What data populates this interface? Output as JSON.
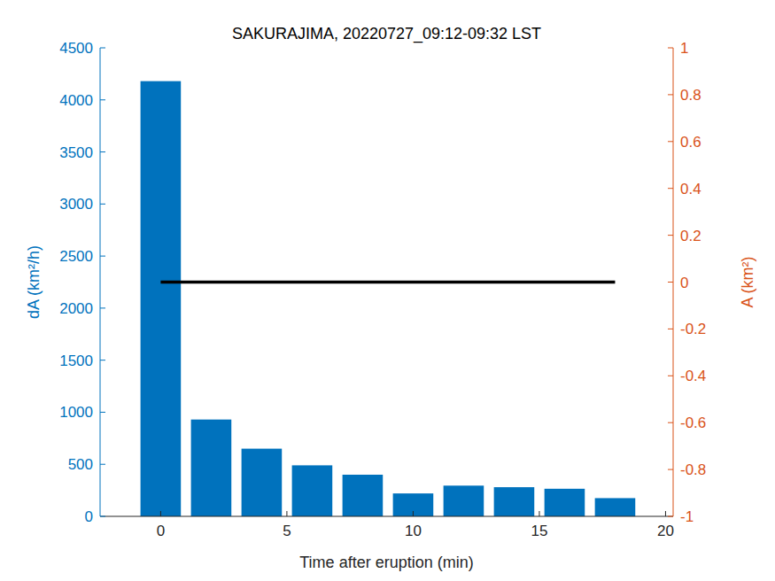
{
  "chart_data": {
    "type": "bar",
    "title": "SAKURAJIMA, 20220727_09:12-09:32 LST",
    "xlabel": "Time after eruption (min)",
    "ylabel": "dA (km²/h)",
    "y2label": "A (km²)",
    "x": [
      0,
      2,
      4,
      6,
      8,
      10,
      12,
      14,
      16,
      18
    ],
    "series": [
      {
        "type": "bar",
        "color": "#0072bd",
        "values": [
          4180,
          930,
          650,
          490,
          400,
          220,
          295,
          280,
          265,
          175
        ]
      },
      {
        "type": "line",
        "axis": "y2",
        "color": "#000000",
        "values": [
          0,
          0,
          0,
          0,
          0,
          0,
          0,
          0,
          0,
          0
        ]
      }
    ],
    "xlim": [
      -2.4,
      20.3
    ],
    "xticks": [
      0,
      5,
      10,
      15,
      20
    ],
    "ylim": [
      0,
      4500
    ],
    "yticks": [
      0,
      500,
      1000,
      1500,
      2000,
      2500,
      3000,
      3500,
      4000,
      4500
    ],
    "y2lim": [
      -1,
      1
    ],
    "y2ticks": [
      -1,
      -0.8,
      -0.6,
      -0.4,
      -0.2,
      0,
      0.2,
      0.4,
      0.6,
      0.8,
      1
    ],
    "grid": false
  }
}
